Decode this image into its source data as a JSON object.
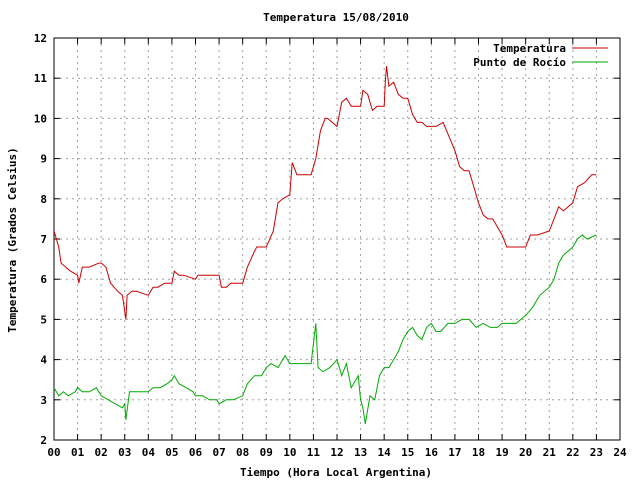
{
  "chart_data": {
    "type": "line",
    "title": "Temperatura 15/08/2010",
    "xlabel": "Tiempo (Hora Local Argentina)",
    "ylabel": "Temperatura (Grados Celsius)",
    "xlim": [
      0,
      24
    ],
    "ylim": [
      2,
      12
    ],
    "grid": true,
    "legend_position": "top-right",
    "x_ticks": [
      "00",
      "01",
      "02",
      "03",
      "04",
      "05",
      "06",
      "07",
      "08",
      "09",
      "10",
      "11",
      "12",
      "13",
      "14",
      "15",
      "16",
      "17",
      "18",
      "19",
      "20",
      "21",
      "22",
      "23",
      "24"
    ],
    "y_ticks": [
      "2",
      "3",
      "4",
      "5",
      "6",
      "7",
      "8",
      "9",
      "10",
      "11",
      "12"
    ],
    "series": [
      {
        "name": "Temperatura",
        "color": "#cc0000",
        "x": [
          0.0,
          0.1,
          0.2,
          0.3,
          0.5,
          0.7,
          1.0,
          1.05,
          1.2,
          1.5,
          1.9,
          2.0,
          2.2,
          2.4,
          2.7,
          2.9,
          3.05,
          3.1,
          3.3,
          3.5,
          4.0,
          4.1,
          4.2,
          4.4,
          4.7,
          5.0,
          5.1,
          5.3,
          5.5,
          6.0,
          6.1,
          6.2,
          6.4,
          7.0,
          7.1,
          7.3,
          7.5,
          8.0,
          8.2,
          8.5,
          8.6,
          9.0,
          9.3,
          9.5,
          9.7,
          10.0,
          10.1,
          10.3,
          10.5,
          10.9,
          11.1,
          11.3,
          11.5,
          11.6,
          12.0,
          12.2,
          12.4,
          12.6,
          13.0,
          13.1,
          13.3,
          13.5,
          13.7,
          14.0,
          14.05,
          14.1,
          14.2,
          14.4,
          14.6,
          14.8,
          15.0,
          15.2,
          15.4,
          15.6,
          15.8,
          16.0,
          16.2,
          16.5,
          17.0,
          17.2,
          17.4,
          17.6,
          18.0,
          18.2,
          18.4,
          18.6,
          19.0,
          19.2,
          19.5,
          20.0,
          20.2,
          20.5,
          21.0,
          21.2,
          21.4,
          21.6,
          22.0,
          22.2,
          22.5,
          22.8,
          23.0
        ],
        "values": [
          7.2,
          7.0,
          6.8,
          6.4,
          6.3,
          6.2,
          6.1,
          5.9,
          6.3,
          6.3,
          6.4,
          6.4,
          6.3,
          5.9,
          5.7,
          5.6,
          5.0,
          5.6,
          5.7,
          5.7,
          5.6,
          5.7,
          5.8,
          5.8,
          5.9,
          5.9,
          6.2,
          6.1,
          6.1,
          6.0,
          6.1,
          6.1,
          6.1,
          6.1,
          5.8,
          5.8,
          5.9,
          5.9,
          6.3,
          6.7,
          6.8,
          6.8,
          7.2,
          7.9,
          8.0,
          8.1,
          8.9,
          8.6,
          8.6,
          8.6,
          9.0,
          9.7,
          10.0,
          10.0,
          9.8,
          10.4,
          10.5,
          10.3,
          10.3,
          10.7,
          10.6,
          10.2,
          10.3,
          10.3,
          10.9,
          11.3,
          10.8,
          10.9,
          10.6,
          10.5,
          10.5,
          10.1,
          9.9,
          9.9,
          9.8,
          9.8,
          9.8,
          9.9,
          9.2,
          8.8,
          8.7,
          8.7,
          7.9,
          7.6,
          7.5,
          7.5,
          7.1,
          6.8,
          6.8,
          6.8,
          7.1,
          7.1,
          7.2,
          7.5,
          7.8,
          7.7,
          7.9,
          8.3,
          8.4,
          8.6,
          8.6
        ]
      },
      {
        "name": "Punto de Rocío",
        "color": "#00aa00",
        "x": [
          0.0,
          0.1,
          0.2,
          0.4,
          0.6,
          0.9,
          1.0,
          1.2,
          1.5,
          1.8,
          2.0,
          2.3,
          2.6,
          2.9,
          3.0,
          3.05,
          3.2,
          3.5,
          4.0,
          4.2,
          4.5,
          4.8,
          5.0,
          5.1,
          5.3,
          5.6,
          5.9,
          6.0,
          6.3,
          6.6,
          6.9,
          7.0,
          7.3,
          7.6,
          8.0,
          8.2,
          8.5,
          8.8,
          9.0,
          9.2,
          9.5,
          9.8,
          10.0,
          10.3,
          10.6,
          10.9,
          11.1,
          11.2,
          11.4,
          11.7,
          12.0,
          12.2,
          12.4,
          12.6,
          12.9,
          13.0,
          13.1,
          13.2,
          13.4,
          13.6,
          13.8,
          14.0,
          14.2,
          14.4,
          14.6,
          14.8,
          15.0,
          15.2,
          15.4,
          15.6,
          15.8,
          16.0,
          16.2,
          16.4,
          16.7,
          17.0,
          17.3,
          17.6,
          17.9,
          18.2,
          18.5,
          18.8,
          19.0,
          19.3,
          19.6,
          20.0,
          20.3,
          20.6,
          21.0,
          21.2,
          21.4,
          21.6,
          22.0,
          22.2,
          22.4,
          22.6,
          23.0
        ],
        "values": [
          3.3,
          3.2,
          3.1,
          3.2,
          3.1,
          3.2,
          3.3,
          3.2,
          3.2,
          3.3,
          3.1,
          3.0,
          2.9,
          2.8,
          2.9,
          2.5,
          3.2,
          3.2,
          3.2,
          3.3,
          3.3,
          3.4,
          3.5,
          3.6,
          3.4,
          3.3,
          3.2,
          3.1,
          3.1,
          3.0,
          3.0,
          2.9,
          3.0,
          3.0,
          3.1,
          3.4,
          3.6,
          3.6,
          3.8,
          3.9,
          3.8,
          4.1,
          3.9,
          3.9,
          3.9,
          3.9,
          4.9,
          3.8,
          3.7,
          3.8,
          4.0,
          3.6,
          3.9,
          3.3,
          3.6,
          3.0,
          2.8,
          2.4,
          3.1,
          3.0,
          3.6,
          3.8,
          3.8,
          4.0,
          4.2,
          4.5,
          4.7,
          4.8,
          4.6,
          4.5,
          4.8,
          4.9,
          4.7,
          4.7,
          4.9,
          4.9,
          5.0,
          5.0,
          4.8,
          4.9,
          4.8,
          4.8,
          4.9,
          4.9,
          4.9,
          5.1,
          5.3,
          5.6,
          5.8,
          6.0,
          6.4,
          6.6,
          6.8,
          7.0,
          7.1,
          7.0,
          7.1
        ]
      }
    ]
  }
}
